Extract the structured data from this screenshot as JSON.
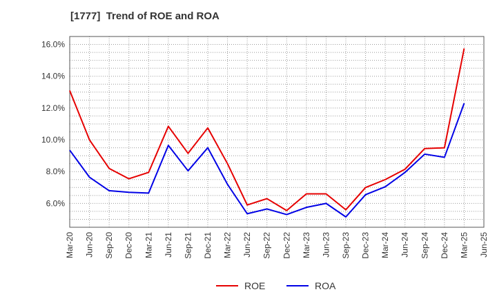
{
  "chart_data": {
    "type": "line",
    "title": "[1777]  Trend of ROE and ROA",
    "xlabel": "",
    "ylabel": "",
    "categories": [
      "Mar-20",
      "Jun-20",
      "Sep-20",
      "Dec-20",
      "Mar-21",
      "Jun-21",
      "Sep-21",
      "Dec-21",
      "Mar-22",
      "Jun-22",
      "Sep-22",
      "Dec-22",
      "Mar-23",
      "Jun-23",
      "Sep-23",
      "Dec-23",
      "Mar-24",
      "Jun-24",
      "Sep-24",
      "Dec-24",
      "Mar-25",
      "Jun-25"
    ],
    "ylim": [
      4.5,
      16.5
    ],
    "yticks": [
      6.0,
      8.0,
      10.0,
      12.0,
      14.0,
      16.0
    ],
    "ytick_labels": [
      "6.0%",
      "8.0%",
      "10.0%",
      "12.0%",
      "14.0%",
      "16.0%"
    ],
    "grid": true,
    "legend_position": "bottom",
    "series": [
      {
        "name": "ROE",
        "color": "#e60000",
        "values": [
          13.1,
          10.0,
          8.2,
          7.55,
          7.95,
          10.85,
          9.15,
          10.75,
          8.5,
          5.9,
          6.3,
          5.55,
          6.6,
          6.6,
          5.6,
          7.0,
          7.5,
          8.15,
          9.45,
          9.5,
          15.75,
          null
        ]
      },
      {
        "name": "ROA",
        "color": "#0000e6",
        "values": [
          9.35,
          7.65,
          6.8,
          6.7,
          6.65,
          9.65,
          8.05,
          9.5,
          7.2,
          5.35,
          5.65,
          5.3,
          5.75,
          6.0,
          5.15,
          6.55,
          7.05,
          7.95,
          9.1,
          8.9,
          12.3,
          null
        ]
      }
    ]
  }
}
